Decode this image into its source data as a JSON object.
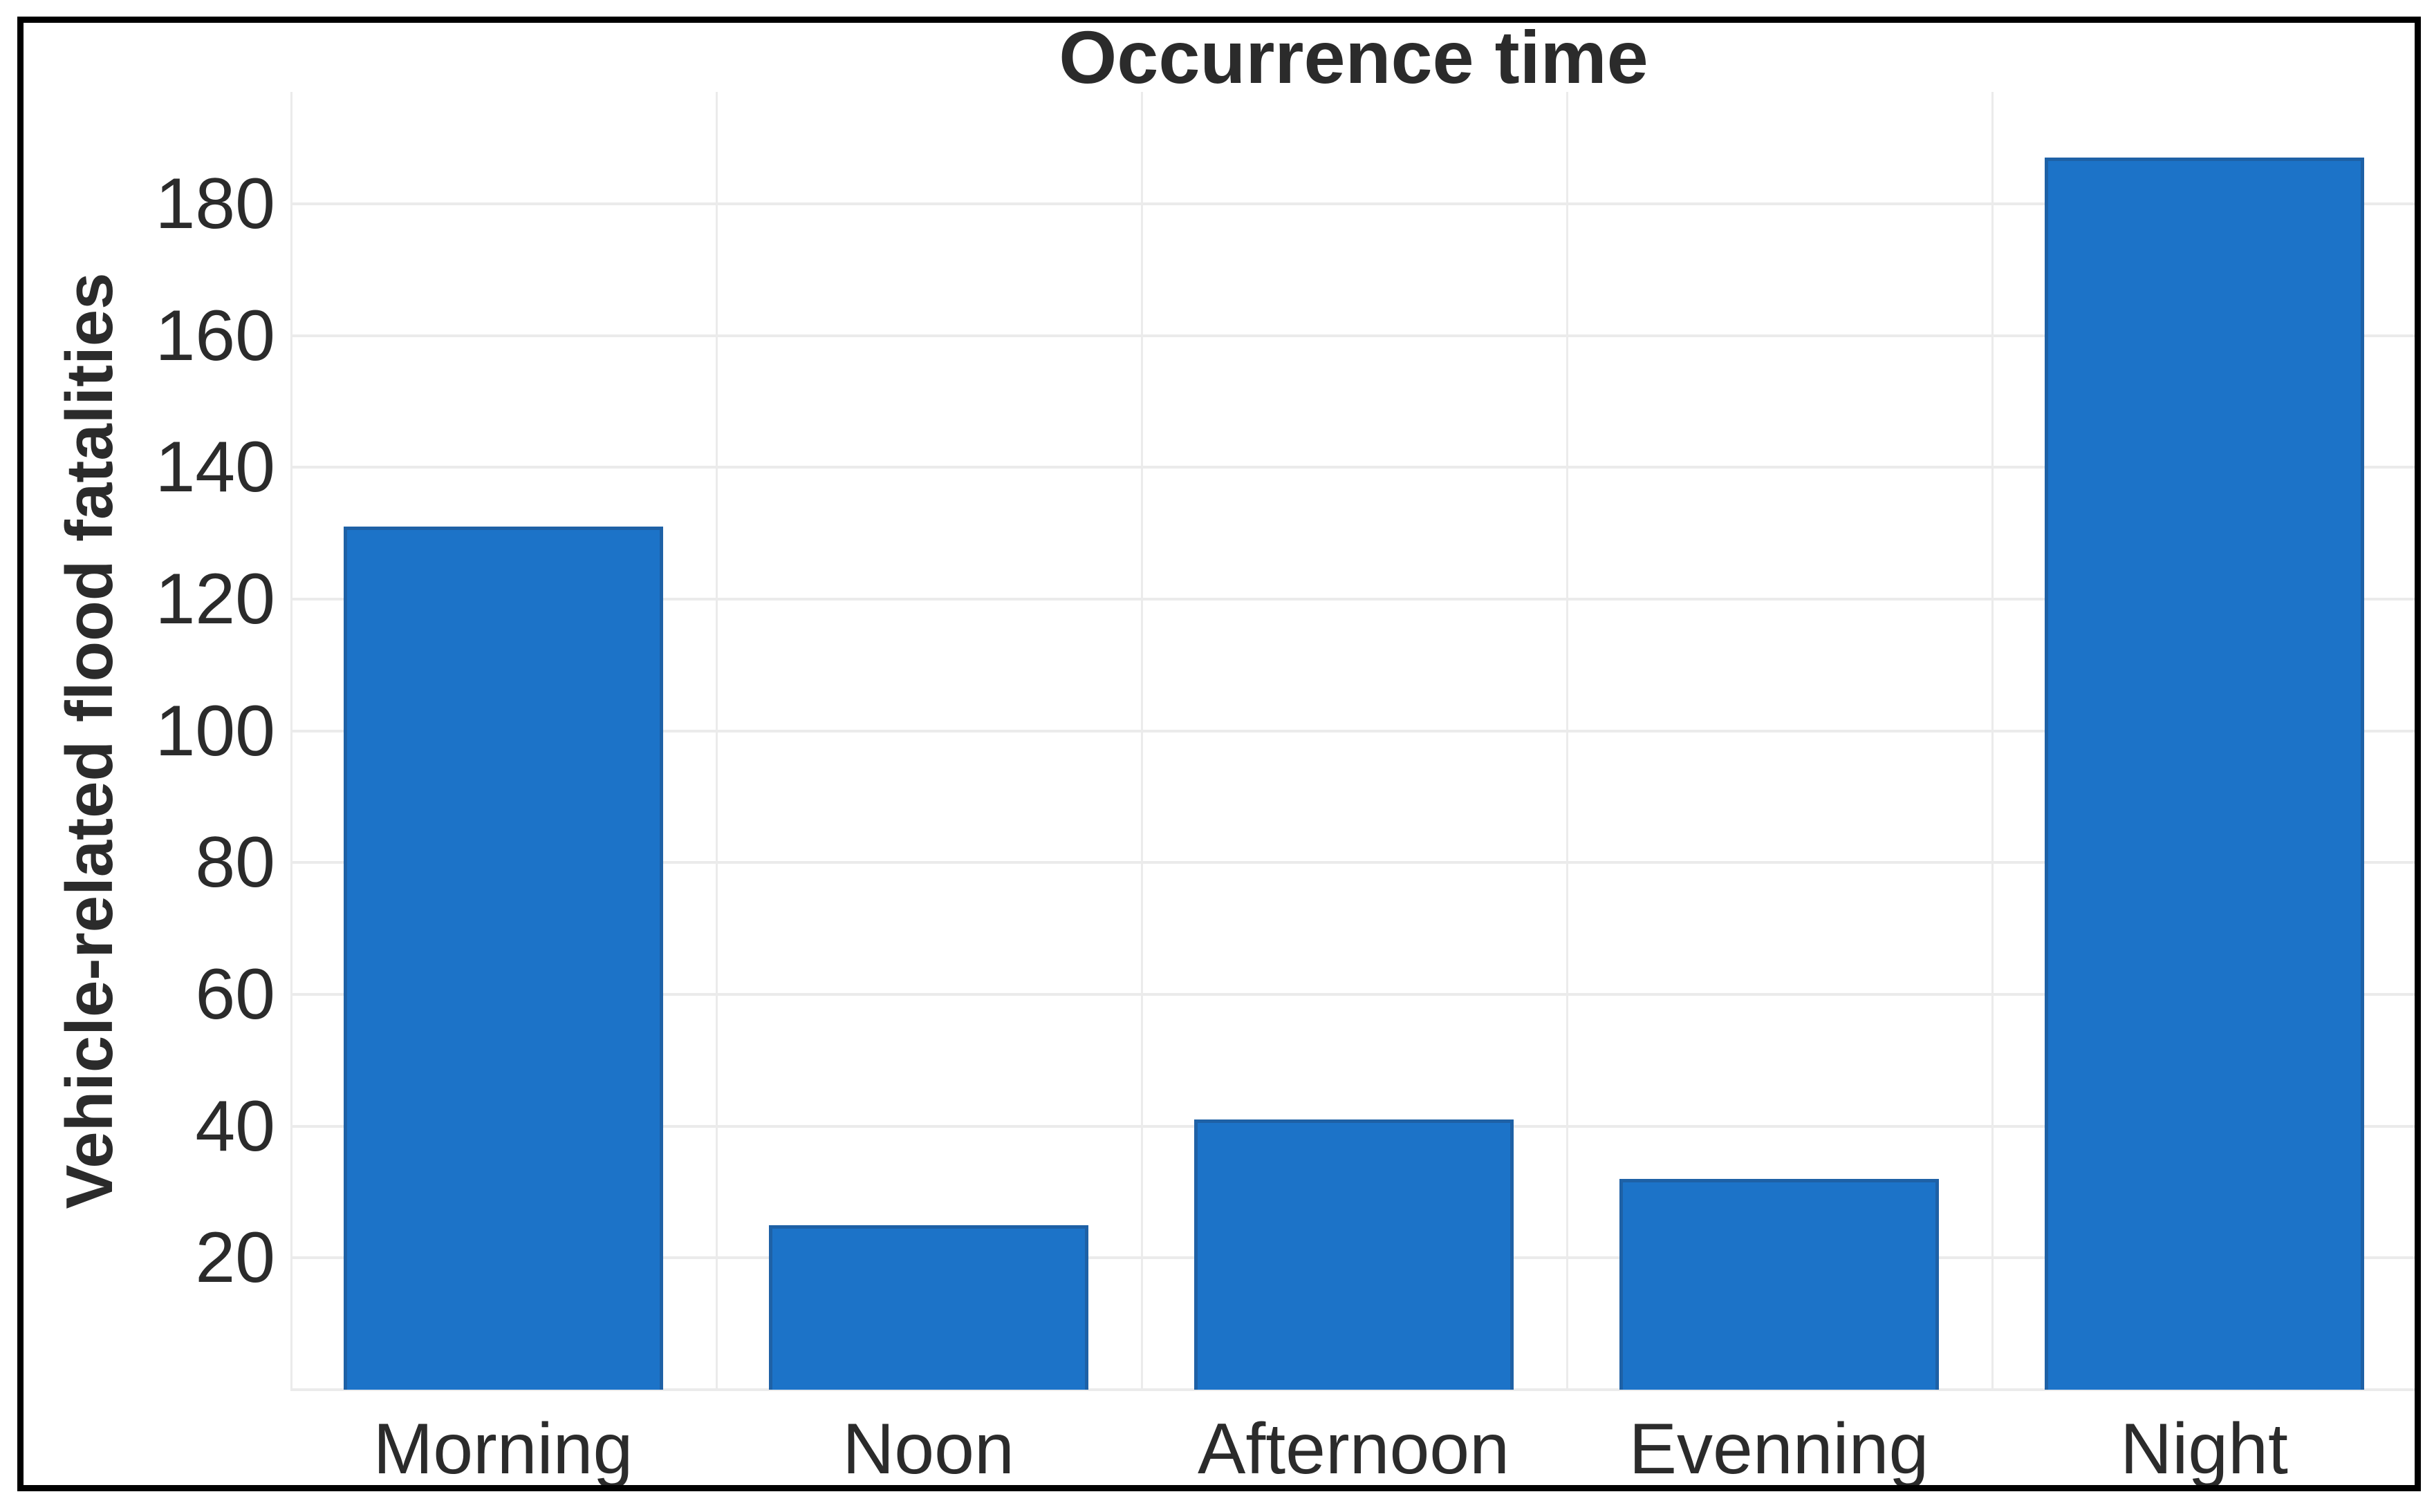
{
  "chart_data": {
    "type": "bar",
    "title": "Occurrence time",
    "xlabel": "",
    "ylabel": "Vehicle-related flood fatalities",
    "categories": [
      "Morning",
      "Noon",
      "Afternoon",
      "Evenning",
      "Night"
    ],
    "values": [
      131,
      25,
      41,
      32,
      187
    ],
    "yticks": [
      20,
      40,
      60,
      80,
      100,
      120,
      140,
      160,
      180
    ],
    "ylim": [
      0,
      197
    ],
    "grid": true,
    "legend_position": "none",
    "colors": {
      "bar": "#1c73c8",
      "gridline": "#ebebeb",
      "axis_text": "#2b2b2b",
      "title_text": "#2b2b2b",
      "frame_border": "#000000",
      "background": "#ffffff"
    }
  }
}
